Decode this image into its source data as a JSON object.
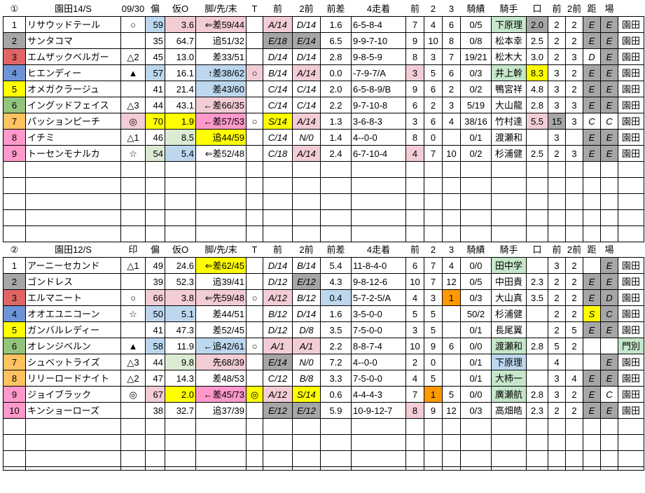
{
  "colors": {
    "lb": "#BDD7EE",
    "pp": "#F2CDD6",
    "bp": "#FF99CC",
    "y": "#FFFF00",
    "pg": "#DCEBD4",
    "mg": "#C6E7CA",
    "gy": "#A6A6A6",
    "or": "#FF9900",
    "gray": "#A6A6A6",
    "red": "#E06666",
    "blue": "#6D94D6",
    "yellow": "#FFFF00",
    "green": "#93C47D",
    "orange": "#FFC261",
    "pink": "#FF99CC"
  },
  "columns": [
    {
      "key": "num",
      "nm": "bracket-number-cell",
      "w": 32,
      "al": "c"
    },
    {
      "key": "name",
      "nm": "horse-name-cell",
      "w": 136,
      "al": "l"
    },
    {
      "key": "mark",
      "nm": "pick-mark-cell",
      "w": 35,
      "al": "c"
    },
    {
      "key": "hen",
      "nm": "hen-score-cell",
      "w": 28,
      "al": "r"
    },
    {
      "key": "kari",
      "nm": "kari-odds-cell",
      "w": 44,
      "al": "r"
    },
    {
      "key": "ashi",
      "nm": "running-style-cell",
      "w": 72,
      "al": "r"
    },
    {
      "key": "t",
      "nm": "t-flag-cell",
      "w": 24,
      "al": "c"
    },
    {
      "key": "mae1",
      "nm": "prev-race-class-cell",
      "w": 42,
      "al": "c",
      "it": true
    },
    {
      "key": "mae2",
      "nm": "prev2-race-class-cell",
      "w": 40,
      "al": "c",
      "it": true
    },
    {
      "key": "maesa",
      "nm": "prev-margin-cell",
      "w": 44,
      "al": "c"
    },
    {
      "key": "yonso",
      "nm": "last4-finish-cell",
      "w": 78,
      "al": "l"
    },
    {
      "key": "p1",
      "nm": "prev-pos-cell",
      "w": 26,
      "al": "c"
    },
    {
      "key": "p2",
      "nm": "pos2-cell",
      "w": 26,
      "al": "c"
    },
    {
      "key": "p3",
      "nm": "pos3-cell",
      "w": 26,
      "al": "c"
    },
    {
      "key": "kiseki",
      "nm": "jockey-record-cell",
      "w": 44,
      "al": "c"
    },
    {
      "key": "jockey",
      "nm": "jockey-name-cell",
      "w": 50,
      "al": "c"
    },
    {
      "key": "kuchi",
      "nm": "kuchi-value-cell",
      "w": 31,
      "al": "c"
    },
    {
      "key": "q1",
      "nm": "front-pos-cell",
      "w": 25,
      "al": "c"
    },
    {
      "key": "q2",
      "nm": "front2-pos-cell",
      "w": 25,
      "al": "c"
    },
    {
      "key": "kyo",
      "nm": "distance-grade-cell",
      "w": 25,
      "al": "c",
      "it": true
    },
    {
      "key": "ba",
      "nm": "track-grade-cell",
      "w": 25,
      "al": "c",
      "it": true
    },
    {
      "key": "track",
      "nm": "track-name-cell",
      "w": 37,
      "al": "c"
    }
  ],
  "tables": [
    {
      "headers": [
        "①",
        "園田14/S",
        "09/30",
        "偏",
        "仮O",
        "脚/先/末",
        "T",
        "前",
        "2前",
        "前差",
        "4走着",
        "前",
        "2",
        "3",
        "騎績",
        "騎手",
        "口",
        "前",
        "2前",
        "距",
        "場",
        ""
      ],
      "rows": [
        [
          "1",
          "リサウッドテール",
          "○",
          [
            "59",
            "lb"
          ],
          [
            "3.6",
            "pp"
          ],
          [
            "⇐差59/44",
            "pp"
          ],
          "",
          [
            "A/14",
            "pp"
          ],
          "D/14",
          "1.6",
          "6-5-8-4",
          "7",
          "4",
          "6",
          "0/5",
          [
            "下原理",
            "mg"
          ],
          [
            "2.0",
            "gy"
          ],
          "2",
          "2",
          [
            "E",
            "gy"
          ],
          [
            "E",
            "gy"
          ],
          "園田"
        ],
        [
          [
            "2",
            "gray"
          ],
          "サンタコマ",
          "",
          "35",
          "64.7",
          "追51/32",
          "",
          [
            "E/18",
            "gy"
          ],
          [
            "E/14",
            "gy"
          ],
          "6.5",
          "9-9-7-10",
          "9",
          "10",
          "8",
          "0/8",
          "松本幸",
          "2.5",
          "2",
          "2",
          [
            "E",
            "gy"
          ],
          [
            "E",
            "gy"
          ],
          "園田"
        ],
        [
          [
            "3",
            "red"
          ],
          "エムザックベルガー",
          "△2",
          "45",
          "13.0",
          "差33/51",
          "",
          "D/14",
          "D/14",
          "2.8",
          "9-8-5-9",
          "8",
          "3",
          "7",
          "19/21",
          "松木大",
          "3.0",
          "2",
          "3",
          "D",
          [
            "E",
            "gy"
          ],
          "園田"
        ],
        [
          [
            "4",
            "blue"
          ],
          "ヒエンディー",
          "▲",
          [
            "57",
            "lb"
          ],
          "16.1",
          [
            "↑差38/62",
            "lb"
          ],
          [
            "○",
            "pp"
          ],
          "B/14",
          [
            "A/14",
            "pp"
          ],
          "0.0",
          "-7-9-7/A",
          [
            "3",
            "pp"
          ],
          "5",
          "6",
          "0/3",
          [
            "井上幹",
            "mg"
          ],
          [
            "8.3",
            "y"
          ],
          "3",
          "2",
          [
            "E",
            "gy"
          ],
          [
            "E",
            "gy"
          ],
          "園田"
        ],
        [
          [
            "5",
            "yellow"
          ],
          "オメガクラージュ",
          "",
          "41",
          "21.4",
          [
            "差43/60",
            "lb"
          ],
          "",
          "C/14",
          "C/14",
          "2.0",
          "6-5-8-9/B",
          "9",
          "6",
          "2",
          "0/2",
          "鴨宮祥",
          "4.8",
          "3",
          "2",
          [
            "E",
            "gy"
          ],
          [
            "E",
            "gy"
          ],
          "園田"
        ],
        [
          [
            "6",
            "green"
          ],
          "イングッドフェイス",
          "△3",
          "44",
          "43.1",
          [
            "←差66/35",
            "pp"
          ],
          "",
          "C/14",
          "C/14",
          "2.2",
          "9-7-10-8",
          "6",
          "2",
          "3",
          "5/19",
          "大山龍",
          "2.8",
          "3",
          "3",
          [
            "E",
            "gy"
          ],
          [
            "E",
            "gy"
          ],
          "園田"
        ],
        [
          [
            "7",
            "orange"
          ],
          "パッションピーチ",
          [
            "◎",
            "pp"
          ],
          [
            "70",
            "y"
          ],
          [
            "1.9",
            "y"
          ],
          [
            "←差57/53",
            "bp"
          ],
          "○",
          [
            "S/14",
            "y"
          ],
          [
            "A/14",
            "pp"
          ],
          "1.3",
          "3-6-8-3",
          "3",
          "6",
          "4",
          "38/16",
          "竹村達",
          [
            "5.5",
            "pp"
          ],
          [
            "15",
            "gy"
          ],
          "3",
          "C",
          "C",
          "園田"
        ],
        [
          [
            "8",
            "pink"
          ],
          "イチミ",
          "△1",
          "46",
          [
            "8.5",
            "pg"
          ],
          [
            "追44/59",
            "y"
          ],
          "",
          "C/14",
          "N/0",
          "1.4",
          "4--0-0",
          "8",
          "0",
          "",
          "0/1",
          "渡瀬和",
          "",
          "3",
          "",
          [
            "E",
            "gy"
          ],
          [
            "E",
            "gy"
          ],
          "園田"
        ],
        [
          [
            "9",
            "pink"
          ],
          "トーセンモナルカ",
          "☆",
          [
            "54",
            "pg"
          ],
          [
            "5.4",
            "lb"
          ],
          "⇐差52/48",
          "",
          "C/18",
          [
            "A/14",
            "pp"
          ],
          "2.4",
          "6-7-10-4",
          [
            "4",
            "pp"
          ],
          "7",
          "10",
          "0/2",
          "杉浦健",
          "2.5",
          "2",
          "3",
          [
            "E",
            "gy"
          ],
          [
            "E",
            "gy"
          ],
          "園田"
        ]
      ],
      "empty_rows": 5,
      "partial_row": false
    },
    {
      "headers": [
        "②",
        "園田12/S",
        "印",
        "偏",
        "仮O",
        "脚/先/末",
        "T",
        "前",
        "2前",
        "前差",
        "4走着",
        "前",
        "2",
        "3",
        "騎績",
        "騎手",
        "口",
        "前",
        "2前",
        "距",
        "場",
        ""
      ],
      "rows": [
        [
          "1",
          "アーニーセカンド",
          "△1",
          "49",
          "24.6",
          [
            "⇐差62/45",
            "y"
          ],
          "",
          "D/14",
          "B/14",
          "5.4",
          "11-8-4-0",
          "6",
          "7",
          "4",
          "0/0",
          [
            "田中学",
            "mg"
          ],
          "",
          "3",
          "2",
          "",
          [
            "E",
            "gy"
          ],
          "園田"
        ],
        [
          [
            "2",
            "gray"
          ],
          "ゴンドレス",
          "",
          "39",
          "52.3",
          "追39/41",
          "",
          "D/12",
          [
            "E/12",
            "gy"
          ],
          "4.3",
          "9-8-12-6",
          "10",
          "7",
          "12",
          "0/5",
          "中田貴",
          "2.3",
          "2",
          "2",
          [
            "E",
            "gy"
          ],
          [
            "E",
            "gy"
          ],
          "園田"
        ],
        [
          [
            "3",
            "red"
          ],
          "エルマニート",
          "○",
          [
            "66",
            "pp"
          ],
          [
            "3.8",
            "pp"
          ],
          [
            "⇐先59/48",
            "pp"
          ],
          "○",
          [
            "A/12",
            "pp"
          ],
          "B/12",
          [
            "0.4",
            "lb"
          ],
          "5-7-2-5/A",
          "4",
          "3",
          [
            "1",
            "or"
          ],
          "0/3",
          "大山真",
          "3.5",
          "2",
          "2",
          [
            "E",
            "gy"
          ],
          [
            "D",
            "gy"
          ],
          "園田"
        ],
        [
          [
            "4",
            "blue"
          ],
          "オオエユニコーン",
          "☆",
          [
            "50",
            "lb"
          ],
          [
            "5.1",
            "lb"
          ],
          "差44/51",
          "",
          "B/12",
          "D/14",
          "1.6",
          "3-5-0-0",
          "5",
          "5",
          "",
          "50/2",
          "杉浦健",
          "",
          "2",
          "2",
          [
            "S",
            "y"
          ],
          [
            "C",
            "gy"
          ],
          "園田"
        ],
        [
          [
            "5",
            "yellow"
          ],
          "ガンバルレディー",
          "",
          "41",
          "47.3",
          "差52/45",
          "",
          "D/12",
          "D/8",
          "3.5",
          "7-5-0-0",
          "3",
          "5",
          "",
          "0/1",
          "長尾翼",
          "",
          "2",
          "5",
          [
            "E",
            "gy"
          ],
          [
            "E",
            "gy"
          ],
          "園田"
        ],
        [
          [
            "6",
            "green"
          ],
          "オレンジベルン",
          "▲",
          [
            "58",
            "lb"
          ],
          "11.9",
          [
            "←追42/61",
            "lb"
          ],
          "○",
          [
            "A/1",
            "pp"
          ],
          [
            "A/1",
            "pp"
          ],
          "2.2",
          "8-8-7-4",
          "10",
          "9",
          "6",
          "0/0",
          [
            "渡瀬和",
            "mg"
          ],
          "2.8",
          "5",
          "2",
          "",
          "",
          [
            "門別",
            "mg"
          ]
        ],
        [
          [
            "7",
            "orange"
          ],
          "シュベットライズ",
          "△3",
          "44",
          [
            "9.8",
            "pg"
          ],
          [
            "先68/39",
            "pp"
          ],
          "",
          [
            "E/14",
            "gy"
          ],
          "N/0",
          "7.2",
          "4--0-0",
          "2",
          "0",
          "",
          "0/1",
          [
            "下原理",
            "lb"
          ],
          "",
          "4",
          "",
          "",
          [
            "E",
            "gy"
          ],
          "園田"
        ],
        [
          [
            "8",
            "orange"
          ],
          "リリーロードナイト",
          "△2",
          "47",
          "14.3",
          "差48/53",
          "",
          "C/12",
          "B/8",
          "3.3",
          "7-5-0-0",
          "4",
          "5",
          "",
          "0/1",
          [
            "大柿一",
            "mg"
          ],
          "",
          "3",
          "4",
          [
            "E",
            "gy"
          ],
          [
            "E",
            "gy"
          ],
          "園田"
        ],
        [
          [
            "9",
            "pink"
          ],
          "ジョイブラック",
          "◎",
          [
            "67",
            "pp"
          ],
          [
            "2.0",
            "y"
          ],
          [
            "←差45/73",
            "bp"
          ],
          [
            "◎",
            "y"
          ],
          [
            "A/12",
            "pp"
          ],
          [
            "S/14",
            "y"
          ],
          "0.6",
          "4-4-4-3",
          "7",
          [
            "1",
            "or"
          ],
          "5",
          "0/0",
          [
            "廣瀬航",
            "mg"
          ],
          "2.8",
          "3",
          "2",
          [
            "E",
            "gy"
          ],
          "C",
          "園田"
        ],
        [
          [
            "10",
            "pink"
          ],
          "キンショーローズ",
          "",
          "38",
          "32.7",
          "追37/39",
          "",
          [
            "E/12",
            "gy"
          ],
          [
            "E/12",
            "gy"
          ],
          "5.9",
          "10-9-12-7",
          [
            "8",
            "pp"
          ],
          "9",
          "12",
          "0/3",
          "高畑皓",
          "2.3",
          "2",
          "2",
          [
            "E",
            "gy"
          ],
          [
            "E",
            "gy"
          ],
          "園田"
        ]
      ],
      "empty_rows": 3,
      "partial_row": true
    }
  ]
}
